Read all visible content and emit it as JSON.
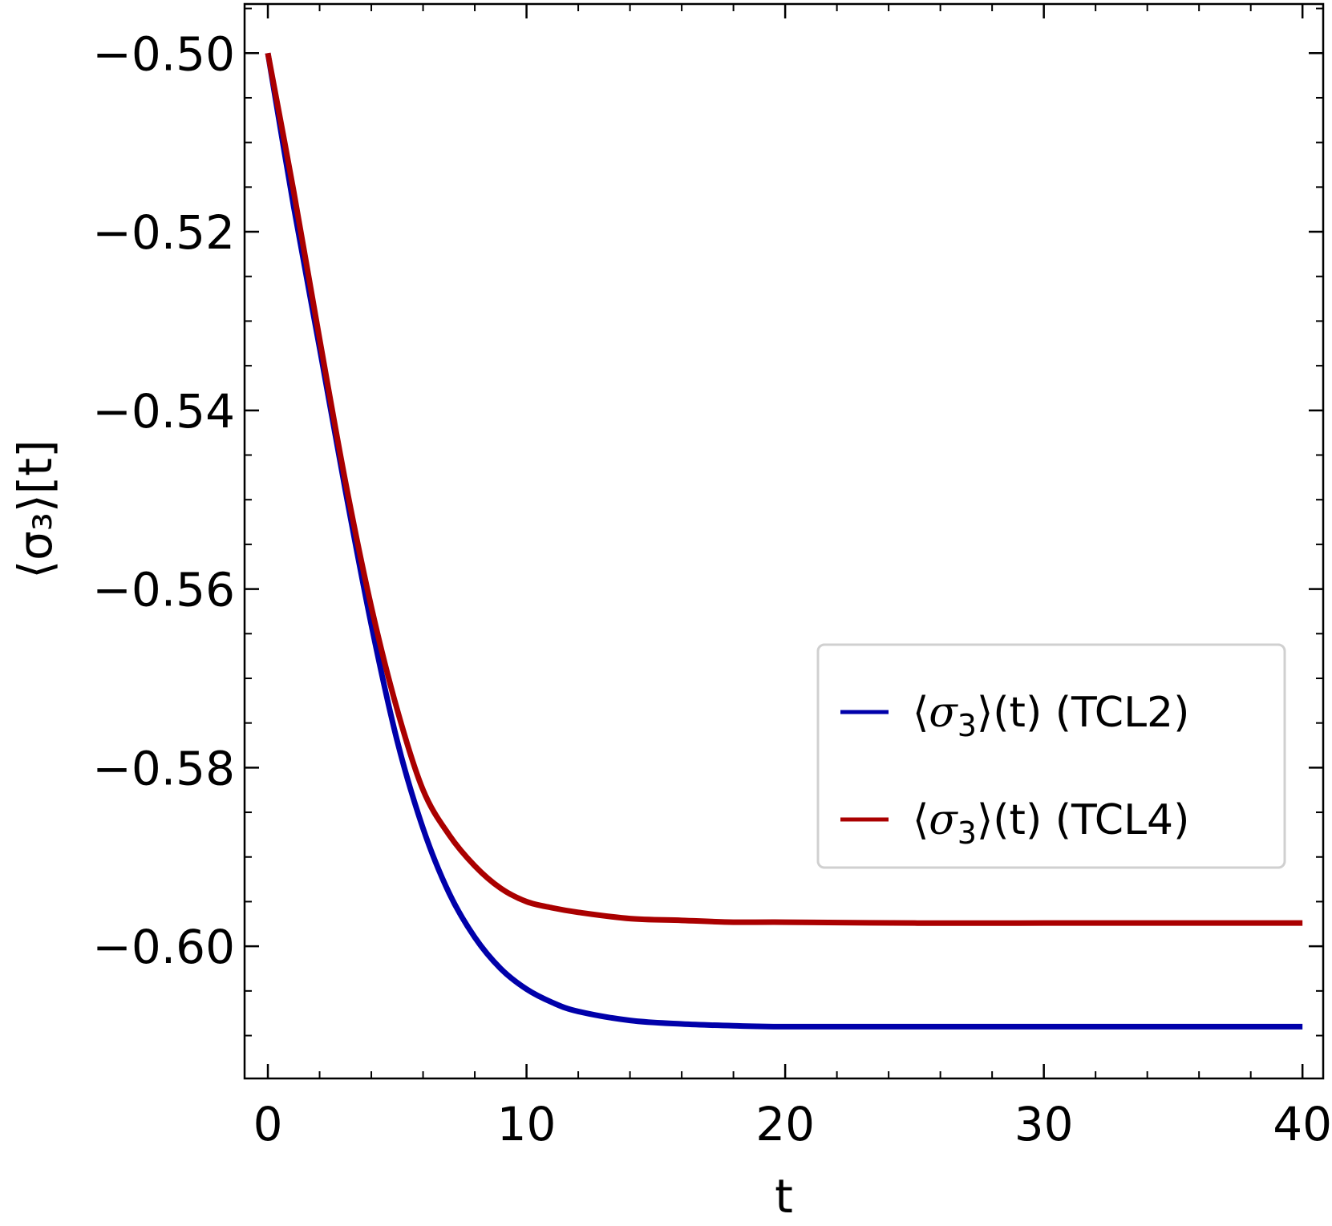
{
  "chart_data": {
    "type": "line",
    "xlabel": "t",
    "ylabel": "⟨σ₃⟩[t]",
    "xlim": [
      -0.9,
      40.8
    ],
    "ylim": [
      -0.6148,
      -0.4945
    ],
    "x_ticks": [
      0,
      10,
      20,
      30,
      40
    ],
    "x_tick_labels": [
      "0",
      "10",
      "20",
      "30",
      "40"
    ],
    "y_ticks": [
      -0.5,
      -0.52,
      -0.54,
      -0.56,
      -0.58,
      -0.6
    ],
    "y_tick_labels": [
      "−0.50",
      "−0.52",
      "−0.54",
      "−0.56",
      "−0.58",
      "−0.60"
    ],
    "grid": false,
    "legend_position": "center-right",
    "series": [
      {
        "name": "⟨σ₃⟩(t) (TCL2)",
        "color": "#0000aa",
        "x": [
          0,
          1,
          2,
          3,
          4,
          5,
          6,
          7,
          8,
          9,
          10,
          11,
          12,
          14,
          16,
          18,
          20,
          25,
          30,
          35,
          40
        ],
        "values": [
          -0.5,
          -0.5172,
          -0.533,
          -0.549,
          -0.564,
          -0.577,
          -0.5868,
          -0.594,
          -0.599,
          -0.6025,
          -0.6048,
          -0.6063,
          -0.6073,
          -0.6083,
          -0.6087,
          -0.6089,
          -0.609,
          -0.609,
          -0.609,
          -0.609,
          -0.609
        ]
      },
      {
        "name": "⟨σ₃⟩(t) (TCL4)",
        "color": "#aa0000",
        "x": [
          0,
          1,
          2,
          3,
          4,
          5,
          6,
          7,
          8,
          9,
          10,
          11,
          12,
          14,
          16,
          18,
          20,
          25,
          30,
          35,
          40
        ],
        "values": [
          -0.5,
          -0.5155,
          -0.532,
          -0.548,
          -0.562,
          -0.5735,
          -0.5825,
          -0.5875,
          -0.591,
          -0.5935,
          -0.595,
          -0.5957,
          -0.5962,
          -0.5969,
          -0.5971,
          -0.5973,
          -0.5973,
          -0.5974,
          -0.5974,
          -0.5974,
          -0.5974
        ]
      }
    ],
    "legend": [
      {
        "label_prefix": "⟨",
        "sigma": "σ",
        "sub": "3",
        "label_suffix": "⟩(t) (TCL2)",
        "color": "#0000aa"
      },
      {
        "label_prefix": "⟨",
        "sigma": "σ",
        "sub": "3",
        "label_suffix": "⟩(t) (TCL4)",
        "color": "#aa0000"
      }
    ]
  }
}
